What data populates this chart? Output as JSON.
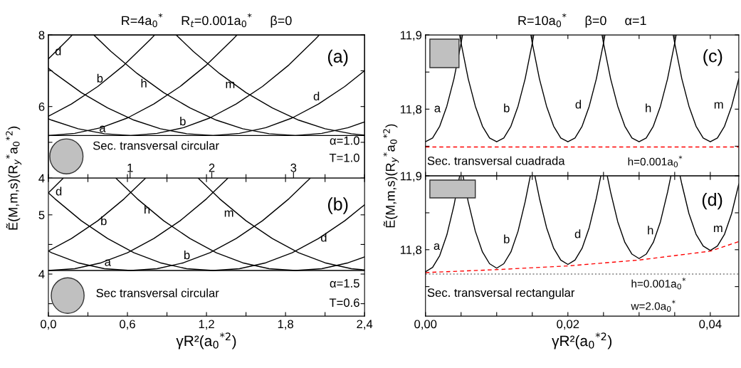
{
  "chart_data": [
    {
      "type": "line",
      "title": "R=4a$_{0}$$^{*}$     R$_{t}$=0.001a$_{0}$$^{*}$     β=0",
      "xlim": [
        0,
        2.4
      ],
      "ylim": [
        4,
        8
      ],
      "tick_labels": "y",
      "xticks": [
        {
          "value": 0,
          "label": null
        },
        {
          "value": 0.3,
          "label": null
        },
        {
          "value": 0.6,
          "label": null
        },
        {
          "value": 0.9,
          "label": null
        },
        {
          "value": 1.2,
          "label": null
        },
        {
          "value": 1.5,
          "label": null
        },
        {
          "value": 1.8,
          "label": null
        },
        {
          "value": 2.1,
          "label": null
        },
        {
          "value": 2.4,
          "label": null
        }
      ],
      "x2lim": [
        0,
        3.87
      ],
      "x2ticks": [
        1,
        2,
        3
      ],
      "yticks": [
        4,
        {
          "value": 5,
          "label": null
        },
        6,
        {
          "value": 7,
          "label": null
        },
        8
      ],
      "grid": false,
      "series": [
        {
          "color": "#000000",
          "x": [
            0,
            0.15,
            0.182
          ],
          "values": [
            7.33,
            7.88,
            8.0
          ]
        },
        {
          "color": "#000000",
          "x": [
            0,
            0.175,
            0.375,
            0.575,
            0.775,
            0.807
          ],
          "values": [
            5.73,
            6.07,
            6.56,
            7.16,
            7.88,
            8.0
          ]
        },
        {
          "color": "#000000",
          "x": [
            0,
            0.2,
            0.4,
            0.6,
            0.8,
            1.0,
            1.2,
            1.4,
            1.432
          ],
          "values": [
            5.19,
            5.25,
            5.41,
            5.68,
            6.07,
            6.56,
            7.16,
            7.88,
            8.0
          ]
        },
        {
          "color": "#000000",
          "x": [
            0,
            0.025,
            0.225,
            0.425,
            0.625,
            0.825,
            1.025,
            1.225,
            1.425,
            1.625,
            1.825,
            2.025,
            2.057
          ],
          "values": [
            5.66,
            5.62,
            5.38,
            5.24,
            5.19,
            5.25,
            5.41,
            5.68,
            6.07,
            6.56,
            7.16,
            7.88,
            8.0
          ]
        },
        {
          "color": "#000000",
          "x": [
            0,
            0.05,
            0.25,
            0.45,
            0.65,
            0.85,
            1.05,
            1.25,
            1.45,
            1.65,
            1.85,
            2.05,
            2.25,
            2.4
          ],
          "values": [
            7.07,
            6.92,
            6.39,
            5.96,
            5.62,
            5.38,
            5.24,
            5.19,
            5.25,
            5.41,
            5.68,
            6.07,
            6.56,
            7.0
          ]
        },
        {
          "color": "#000000",
          "x": [
            0.345,
            0.475,
            0.675,
            0.875,
            1.075,
            1.275,
            1.475,
            1.675,
            1.875,
            2.075,
            2.275,
            2.4
          ],
          "values": [
            8.0,
            7.54,
            6.92,
            6.39,
            5.96,
            5.62,
            5.38,
            5.24,
            5.19,
            5.25,
            5.41,
            5.57
          ]
        },
        {
          "color": "#000000",
          "x": [
            0.97,
            1.1,
            1.3,
            1.5,
            1.7,
            1.9,
            2.1,
            2.3,
            2.4
          ],
          "values": [
            8.0,
            7.54,
            6.92,
            6.39,
            5.96,
            5.62,
            5.38,
            5.24,
            5.2
          ]
        }
      ],
      "ref_lines": [
        {
          "axis": "y",
          "value": 5.19,
          "color": "#000000",
          "line_style": "solid"
        }
      ],
      "annotations": [
        "(a)",
        "Sec. transversal circular",
        "α=1.0",
        "T=1.0",
        "d",
        "b",
        "h",
        "m",
        "d",
        "a",
        "b"
      ]
    },
    {
      "type": "line",
      "xlabel": "γR²(a$_{0}$$^{*2}$)",
      "ylabel": "Ẽ(M,m,s)(R$_{y}$$^{*}$a$_{0}$$^{*2}$)",
      "xlim": [
        0,
        2.4
      ],
      "ylim": [
        3.29,
        5.62
      ],
      "xticks": [
        {
          "value": 0,
          "label": "0,0"
        },
        {
          "value": 0.3,
          "label": null
        },
        {
          "value": 0.6,
          "label": "0,6"
        },
        {
          "value": 0.9,
          "label": null
        },
        {
          "value": 1.2,
          "label": "1,2"
        },
        {
          "value": 1.5,
          "label": null
        },
        {
          "value": 1.8,
          "label": "1,8"
        },
        {
          "value": 2.1,
          "label": null
        },
        {
          "value": 2.4,
          "label": "2,4"
        }
      ],
      "yticks": [
        {
          "value": 3.5,
          "label": null
        },
        4,
        {
          "value": 4.5,
          "label": null
        },
        5
      ],
      "grid": false,
      "series": [
        {
          "color": "#000000",
          "x": [
            0,
            0.113
          ],
          "values": [
            5.37,
            5.62
          ]
        },
        {
          "color": "#000000",
          "x": [
            0,
            0.175,
            0.375,
            0.575,
            0.738
          ],
          "values": [
            4.39,
            4.6,
            4.9,
            5.27,
            5.62
          ]
        },
        {
          "color": "#000000",
          "x": [
            0,
            0.2,
            0.4,
            0.6,
            0.8,
            1.0,
            1.2,
            1.363
          ],
          "values": [
            4.06,
            4.09,
            4.19,
            4.36,
            4.6,
            4.9,
            5.27,
            5.62
          ]
        },
        {
          "color": "#000000",
          "x": [
            0,
            0.025,
            0.225,
            0.425,
            0.625,
            0.825,
            1.025,
            1.225,
            1.425,
            1.625,
            1.825,
            1.988
          ],
          "values": [
            4.39,
            4.36,
            4.19,
            4.09,
            4.06,
            4.09,
            4.19,
            4.36,
            4.6,
            4.9,
            5.27,
            5.62
          ]
        },
        {
          "color": "#000000",
          "x": [
            0,
            0.05,
            0.25,
            0.45,
            0.65,
            0.85,
            1.05,
            1.25,
            1.45,
            1.65,
            1.85,
            2.05,
            2.25,
            2.4
          ],
          "values": [
            5.37,
            5.27,
            4.9,
            4.6,
            4.36,
            4.19,
            4.09,
            4.06,
            4.09,
            4.19,
            4.36,
            4.6,
            4.9,
            5.17
          ]
        },
        {
          "color": "#000000",
          "x": [
            0.512,
            0.675,
            0.875,
            1.075,
            1.275,
            1.475,
            1.675,
            1.875,
            2.075,
            2.275,
            2.4
          ],
          "values": [
            5.62,
            5.27,
            4.9,
            4.6,
            4.36,
            4.19,
            4.09,
            4.06,
            4.09,
            4.19,
            4.29
          ]
        },
        {
          "color": "#000000",
          "x": [
            1.137,
            1.3,
            1.5,
            1.7,
            1.9,
            2.1,
            2.3,
            2.4
          ],
          "values": [
            5.62,
            5.27,
            4.9,
            4.6,
            4.36,
            4.19,
            4.09,
            4.07
          ]
        }
      ],
      "ref_lines": [
        {
          "axis": "y",
          "value": 4.06,
          "color": "#000000",
          "line_style": "solid"
        }
      ],
      "annotations": [
        "(b)",
        "Sec transversal circular",
        "α=1.5",
        "T=0.6",
        "d",
        "b",
        "h",
        "m",
        "d",
        "a",
        "b"
      ]
    },
    {
      "type": "line",
      "title": "R=10a$_{0}$$^{*}$     β=0     α=1",
      "xlim": [
        0,
        0.044
      ],
      "ylim": [
        11.71,
        11.9
      ],
      "tick_labels": "y",
      "xticks": [
        {
          "value": 0,
          "label": null
        },
        {
          "value": 0.005,
          "label": null
        },
        {
          "value": 0.01,
          "label": null
        },
        {
          "value": 0.015,
          "label": null
        },
        {
          "value": 0.02,
          "label": null
        },
        {
          "value": 0.025,
          "label": null
        },
        {
          "value": 0.03,
          "label": null
        },
        {
          "value": 0.035,
          "label": null
        },
        {
          "value": 0.04,
          "label": null
        }
      ],
      "yticks": [
        {
          "value": 11.75,
          "label": null
        },
        {
          "value": 11.8,
          "label": "11,8"
        },
        {
          "value": 11.85,
          "label": null
        },
        {
          "value": 11.9,
          "label": "11,9"
        }
      ],
      "grid": false,
      "series": [
        {
          "color": "#000000",
          "x": [
            0,
            0.001,
            0.002,
            0.003,
            0.004,
            0.005,
            0.0052
          ],
          "values": [
            11.756,
            11.761,
            11.777,
            11.804,
            11.841,
            11.889,
            11.9
          ]
        },
        {
          "color": "#000000",
          "x": [
            0.0048,
            0.005,
            0.006,
            0.007,
            0.008,
            0.009,
            0.01,
            0.011,
            0.012,
            0.013,
            0.014,
            0.015,
            0.0152
          ],
          "values": [
            11.9,
            11.889,
            11.841,
            11.804,
            11.777,
            11.761,
            11.756,
            11.761,
            11.777,
            11.804,
            11.841,
            11.889,
            11.9
          ]
        },
        {
          "color": "#000000",
          "x": [
            0.0148,
            0.015,
            0.016,
            0.017,
            0.018,
            0.019,
            0.02,
            0.021,
            0.022,
            0.023,
            0.024,
            0.025,
            0.0252
          ],
          "values": [
            11.9,
            11.889,
            11.841,
            11.804,
            11.777,
            11.761,
            11.756,
            11.761,
            11.777,
            11.804,
            11.841,
            11.889,
            11.9
          ]
        },
        {
          "color": "#000000",
          "x": [
            0.0248,
            0.025,
            0.026,
            0.027,
            0.028,
            0.029,
            0.03,
            0.031,
            0.032,
            0.033,
            0.034,
            0.035,
            0.0352
          ],
          "values": [
            11.9,
            11.889,
            11.841,
            11.804,
            11.777,
            11.761,
            11.756,
            11.761,
            11.777,
            11.804,
            11.841,
            11.889,
            11.9
          ]
        },
        {
          "color": "#000000",
          "x": [
            0.0348,
            0.035,
            0.036,
            0.037,
            0.038,
            0.039,
            0.04,
            0.041,
            0.042,
            0.043,
            0.044
          ],
          "values": [
            11.9,
            11.889,
            11.841,
            11.804,
            11.777,
            11.761,
            11.756,
            11.761,
            11.777,
            11.804,
            11.841
          ]
        }
      ],
      "ref_lines": [
        {
          "axis": "y",
          "value": 11.749,
          "color": "#ff0000",
          "line_style": "dashed"
        }
      ],
      "annotations": [
        "(c)",
        "Sec. transversal cuadrada",
        "h=0.001a$_{0}$$^{*}$",
        "a",
        "b",
        "d",
        "h",
        "m"
      ]
    },
    {
      "type": "line",
      "xlabel": "γR²(a$_{0}$$^{*2}$)",
      "ylabel": "Ẽ(M,m,s)(R$_{y}$$^{*}$a$_{0}$$^{*2}$)",
      "xlim": [
        0,
        0.044
      ],
      "ylim": [
        11.71,
        11.9
      ],
      "xticks": [
        {
          "value": 0,
          "label": "0,00"
        },
        {
          "value": 0.005,
          "label": null
        },
        {
          "value": 0.01,
          "label": null
        },
        {
          "value": 0.015,
          "label": null
        },
        {
          "value": 0.02,
          "label": "0,02"
        },
        {
          "value": 0.025,
          "label": null
        },
        {
          "value": 0.03,
          "label": null
        },
        {
          "value": 0.035,
          "label": null
        },
        {
          "value": 0.04,
          "label": "0,04"
        }
      ],
      "yticks": [
        {
          "value": 11.75,
          "label": null
        },
        {
          "value": 11.8,
          "label": "11,8"
        },
        {
          "value": 11.85,
          "label": null
        },
        {
          "value": 11.9,
          "label": "11,9"
        }
      ],
      "grid": false,
      "series": [
        {
          "color": "#000000",
          "x": [
            0,
            0.001,
            0.002,
            0.003,
            0.004,
            0.0048
          ],
          "values": [
            11.77,
            11.776,
            11.792,
            11.82,
            11.86,
            11.9
          ]
        },
        {
          "color": "#000000",
          "x": [
            0.005275,
            0.006,
            0.007,
            0.008,
            0.009,
            0.01,
            0.011,
            0.012,
            0.013,
            0.014,
            0.014725
          ],
          "values": [
            11.9,
            11.865,
            11.825,
            11.797,
            11.781,
            11.775,
            11.781,
            11.797,
            11.825,
            11.865,
            11.9
          ]
        },
        {
          "color": "#000000",
          "x": [
            0.015371,
            0.016,
            0.017,
            0.018,
            0.019,
            0.02,
            0.021,
            0.022,
            0.023,
            0.024,
            0.024629
          ],
          "values": [
            11.9,
            11.87,
            11.83,
            11.802,
            11.786,
            11.78,
            11.786,
            11.802,
            11.83,
            11.87,
            11.9
          ]
        },
        {
          "color": "#000000",
          "x": [
            0.025528,
            0.026,
            0.027,
            0.028,
            0.029,
            0.03,
            0.031,
            0.032,
            0.033,
            0.034,
            0.034472
          ],
          "values": [
            11.9,
            11.878,
            11.838,
            11.81,
            11.794,
            11.788,
            11.794,
            11.81,
            11.838,
            11.878,
            11.9
          ]
        },
        {
          "color": "#000000",
          "x": [
            0.035753,
            0.036,
            0.037,
            0.038,
            0.039,
            0.04,
            0.041,
            0.042,
            0.043,
            0.044
          ],
          "values": [
            11.9,
            11.889,
            11.849,
            11.821,
            11.805,
            11.799,
            11.805,
            11.821,
            11.849,
            11.889
          ]
        },
        {
          "color": "#ff0000",
          "line_style": "dashed",
          "x": [
            0,
            0.01,
            0.02,
            0.03,
            0.04,
            0.044
          ],
          "values": [
            11.769,
            11.773,
            11.778,
            11.786,
            11.798,
            11.811
          ]
        }
      ],
      "ref_lines": [
        {
          "axis": "y",
          "value": 11.767,
          "color": "#808080",
          "line_style": "dotted"
        }
      ],
      "annotations": [
        "(d)",
        "h=0.001a$_{0}$$^{*}$",
        "w=2.0a$_{0}$$^{*}$",
        "Sec. transversal rectangular",
        "a",
        "b",
        "d",
        "h",
        "m"
      ]
    }
  ]
}
